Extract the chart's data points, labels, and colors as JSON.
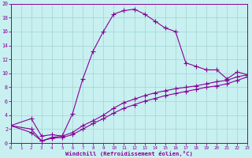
{
  "bg_color": "#c8f0f0",
  "grid_color": "#a8d8d8",
  "line_color": "#880099",
  "xlabel": "Windchill (Refroidissement éolien,°C)",
  "xlim": [
    0,
    23
  ],
  "ylim": [
    0,
    20
  ],
  "xticks": [
    0,
    1,
    2,
    3,
    4,
    5,
    6,
    7,
    8,
    9,
    10,
    11,
    12,
    13,
    14,
    15,
    16,
    17,
    18,
    19,
    20,
    21,
    22,
    23
  ],
  "yticks": [
    0,
    2,
    4,
    6,
    8,
    10,
    12,
    14,
    16,
    18,
    20
  ],
  "curve1_x": [
    0,
    2,
    3,
    4,
    5,
    6,
    7,
    8,
    9,
    10,
    11,
    12,
    13,
    14,
    15,
    16,
    17,
    18,
    19,
    20,
    21,
    22,
    23
  ],
  "curve1_y": [
    2.5,
    3.5,
    1.0,
    1.2,
    1.0,
    4.2,
    9.2,
    13.2,
    16.0,
    18.5,
    19.0,
    19.2,
    18.5,
    17.5,
    16.5,
    16.0,
    11.5,
    11.0,
    10.5,
    10.5,
    9.2,
    10.2,
    9.8
  ],
  "curve2_x": [
    0,
    2,
    3,
    4,
    5,
    6,
    7,
    8,
    9,
    10,
    11,
    12,
    13,
    14,
    15,
    16,
    17,
    18,
    19,
    20,
    21,
    22,
    23
  ],
  "curve2_y": [
    2.5,
    2.0,
    0.3,
    0.8,
    1.0,
    1.5,
    2.5,
    3.2,
    4.0,
    5.0,
    5.8,
    6.3,
    6.8,
    7.2,
    7.5,
    7.8,
    8.0,
    8.2,
    8.5,
    8.8,
    9.0,
    9.5,
    9.8
  ],
  "curve3_x": [
    0,
    2,
    3,
    4,
    5,
    6,
    7,
    8,
    9,
    10,
    11,
    12,
    13,
    14,
    15,
    16,
    17,
    18,
    19,
    20,
    21,
    22,
    23
  ],
  "curve3_y": [
    2.5,
    1.5,
    0.3,
    0.7,
    0.8,
    1.2,
    2.0,
    2.8,
    3.5,
    4.3,
    5.0,
    5.5,
    6.0,
    6.4,
    6.8,
    7.1,
    7.4,
    7.7,
    8.0,
    8.2,
    8.5,
    9.0,
    9.5
  ]
}
